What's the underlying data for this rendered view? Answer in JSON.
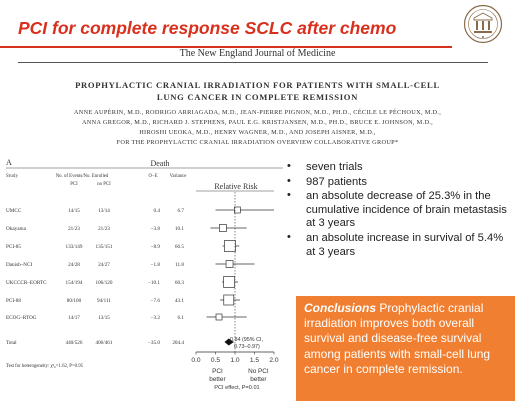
{
  "slide": {
    "title": "PCI for complete response SCLC after chemo",
    "logo_icon": "university-seal-icon"
  },
  "paper": {
    "journal": "The New England Journal of Medicine",
    "title_line1": "PROPHYLACTIC CRANIAL IRRADIATION FOR PATIENTS WITH SMALL-CELL",
    "title_line2": "LUNG CANCER IN COMPLETE REMISSION",
    "authors": [
      "ANNE AUPÉRIN, M.D., RODRIGO ARRIAGADA, M.D., JEAN-PIERRE PIGNON, M.D., PH.D., CÉCILE LE PÉCHOUX, M.D.,",
      "ANNA GREGOR, M.D., RICHARD J. STEPHENS, PAUL E.G. KRISTJANSEN, M.D., PH.D., BRUCE E. JOHNSON, M.D.,",
      "HIROSHI UEOKA, M.D., HENRY WAGNER, M.D., AND JOSEPH AISNER, M.D.,",
      "FOR THE PROPHYLACTIC CRANIAL IRRADIATION OVERVIEW COLLABORATIVE GROUP*"
    ]
  },
  "figure": {
    "panel_label": "A",
    "death_header": "Death",
    "headers": {
      "study": "Study",
      "no_events": "No. of Events/No. Enrolled",
      "o_e": "O−E",
      "variance": "Variance",
      "pci": "PCI",
      "no_pci": "no PCI",
      "relative_risk": "Relative Risk"
    },
    "rows": [
      {
        "study": "UMCC",
        "pci": "14/15",
        "no_pci": "13/14",
        "oe": "0.4",
        "var": "6.7"
      },
      {
        "study": "Okayama",
        "pci": "21/23",
        "no_pci": "21/23",
        "oe": "−3.8",
        "var": "10.1"
      },
      {
        "study": "PCI-85",
        "pci": "133/149",
        "no_pci": "135/151",
        "oe": "−8.9",
        "var": "66.5"
      },
      {
        "study": "Danish–NCI",
        "pci": "24/28",
        "no_pci": "24/27",
        "oe": "−1.8",
        "var": "11.8"
      },
      {
        "study": "UKCCCR–EORTC",
        "pci": "154/194",
        "no_pci": "106/120",
        "oe": "−10.1",
        "var": "60.3"
      },
      {
        "study": "PCI-88",
        "pci": "80/100",
        "no_pci": "94/111",
        "oe": "−7.6",
        "var": "43.1"
      },
      {
        "study": "ECOG–RTOG",
        "pci": "14/17",
        "no_pci": "13/15",
        "oe": "−3.2",
        "var": "6.1"
      }
    ],
    "total": {
      "study": "Total",
      "pci": "440/526",
      "no_pci": "406/461",
      "oe": "−35.0",
      "var": "204.4",
      "ci_line1": "0.84 (95% CI,",
      "ci_line2": "0.73–0.97)"
    },
    "heterogeneity": "Test for heterogeneity: χ²₆=1.62, P=0.95",
    "axis": {
      "ticks": [
        "0.0",
        "0.5",
        "1.0",
        "1.5",
        "2.0"
      ],
      "left_label_1": "PCI",
      "left_label_2": "better",
      "right_label_1": "No PCI",
      "right_label_2": "better",
      "effect": "PCI effect, P=0.01"
    }
  },
  "chart_data": {
    "type": "forest",
    "title": "Death",
    "xlabel": "Relative Risk",
    "xlim": [
      0.0,
      2.0
    ],
    "reference_line": 1.0,
    "categories": [
      "UMCC",
      "Okayama",
      "PCI-85",
      "Danish–NCI",
      "UKCCCR–EORTC",
      "PCI-88",
      "ECOG–RTOG",
      "Total"
    ],
    "estimates": [
      1.06,
      0.69,
      0.87,
      0.86,
      0.85,
      0.84,
      0.59,
      0.84
    ],
    "ci_lower": [
      0.5,
      0.37,
      0.68,
      0.5,
      0.67,
      0.62,
      0.27,
      0.73
    ],
    "ci_upper": [
      2.25,
      1.3,
      1.11,
      1.5,
      1.08,
      1.13,
      1.3,
      0.97
    ]
  },
  "bullets": [
    "seven trials",
    "987 patients",
    "an absolute decrease of 25.3% in the cumulative incidence of brain metastasis at 3 years",
    "an absolute increase in survival of 5.4% at 3 years"
  ],
  "conclusion": {
    "label": "Conclusions",
    "text": " Prophylactic cranial irradiation improves both overall survival and disease-free survival among patients with small-cell lung cancer in complete remission."
  }
}
